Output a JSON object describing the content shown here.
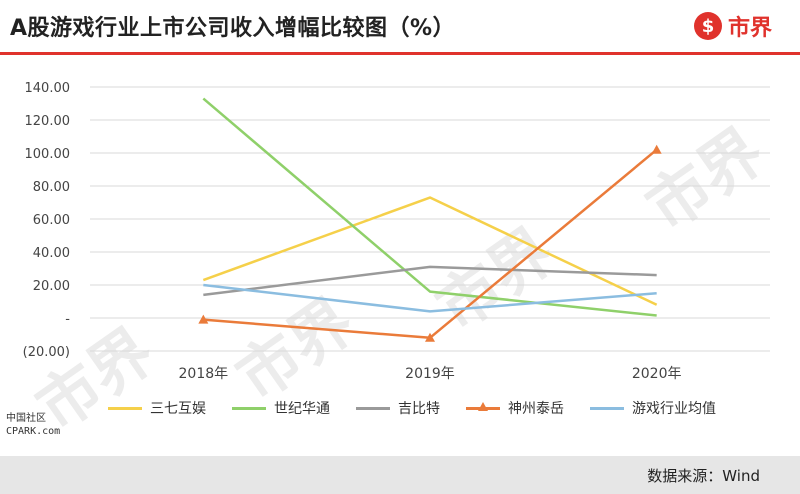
{
  "header": {
    "title": "A股游戏行业上市公司收入增幅比较图（%）",
    "brand": "市界",
    "brand_mark": "$"
  },
  "footer": {
    "source": "数据来源：Wind"
  },
  "corner_mark": [
    "中国社区",
    "CPARK.com"
  ],
  "watermark_text": "市界",
  "chart_data": {
    "type": "line",
    "title": "A股游戏行业上市公司收入增幅比较图（%）",
    "categories": [
      "2018年",
      "2019年",
      "2020年"
    ],
    "ylim": [
      -20,
      140
    ],
    "yticks": [
      -20,
      0,
      20,
      40,
      60,
      80,
      100,
      120,
      140
    ],
    "ytick_labels": [
      "(20.00)",
      "-",
      "20.00",
      "40.00",
      "60.00",
      "80.00",
      "100.00",
      "120.00",
      "140.00"
    ],
    "grid": true,
    "legend_position": "bottom",
    "series": [
      {
        "name": "三七互娱",
        "values": [
          23,
          73,
          8
        ],
        "color": "#f5d04a",
        "marker": "none"
      },
      {
        "name": "世纪华通",
        "values": [
          133,
          16,
          1.5
        ],
        "color": "#8fd06a",
        "marker": "none"
      },
      {
        "name": "吉比特",
        "values": [
          14,
          31,
          26
        ],
        "color": "#9a9a9a",
        "marker": "none"
      },
      {
        "name": "神州泰岳",
        "values": [
          -1,
          -12,
          102
        ],
        "color": "#ea7b3a",
        "marker": "triangle"
      },
      {
        "name": "游戏行业均值",
        "values": [
          20,
          4,
          15
        ],
        "color": "#8bbde0",
        "marker": "none"
      }
    ]
  }
}
